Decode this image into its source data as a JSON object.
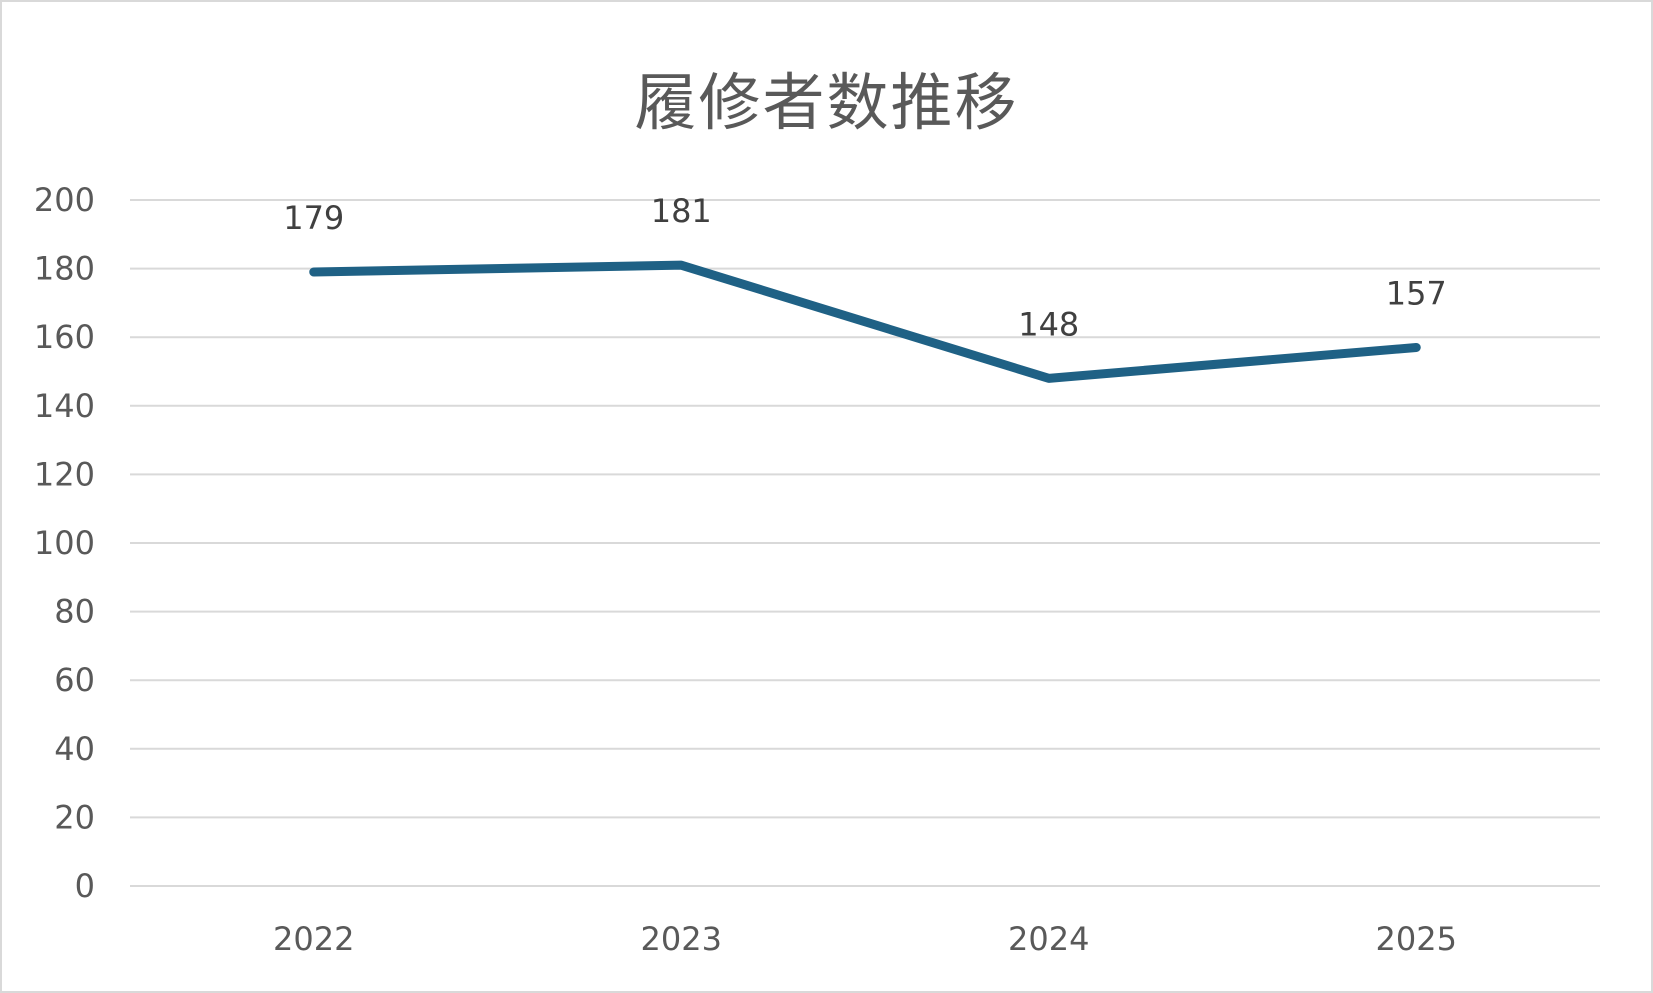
{
  "chart_data": {
    "type": "line",
    "title": "履修者数推移",
    "xlabel": "",
    "ylabel": "",
    "categories": [
      "2022",
      "2023",
      "2024",
      "2025"
    ],
    "series": [
      {
        "values": [
          179,
          181,
          148,
          157
        ]
      }
    ],
    "y_ticks": [
      "0",
      "20",
      "40",
      "60",
      "80",
      "100",
      "120",
      "140",
      "160",
      "180",
      "200"
    ],
    "ylim": [
      0,
      200
    ],
    "y_step": 20,
    "grid": true,
    "legend": "none",
    "data_labels": true,
    "colors": {
      "line": "#1f6185",
      "grid": "#d9d9d9",
      "axis_text": "#595959",
      "data_label": "#404040"
    }
  }
}
